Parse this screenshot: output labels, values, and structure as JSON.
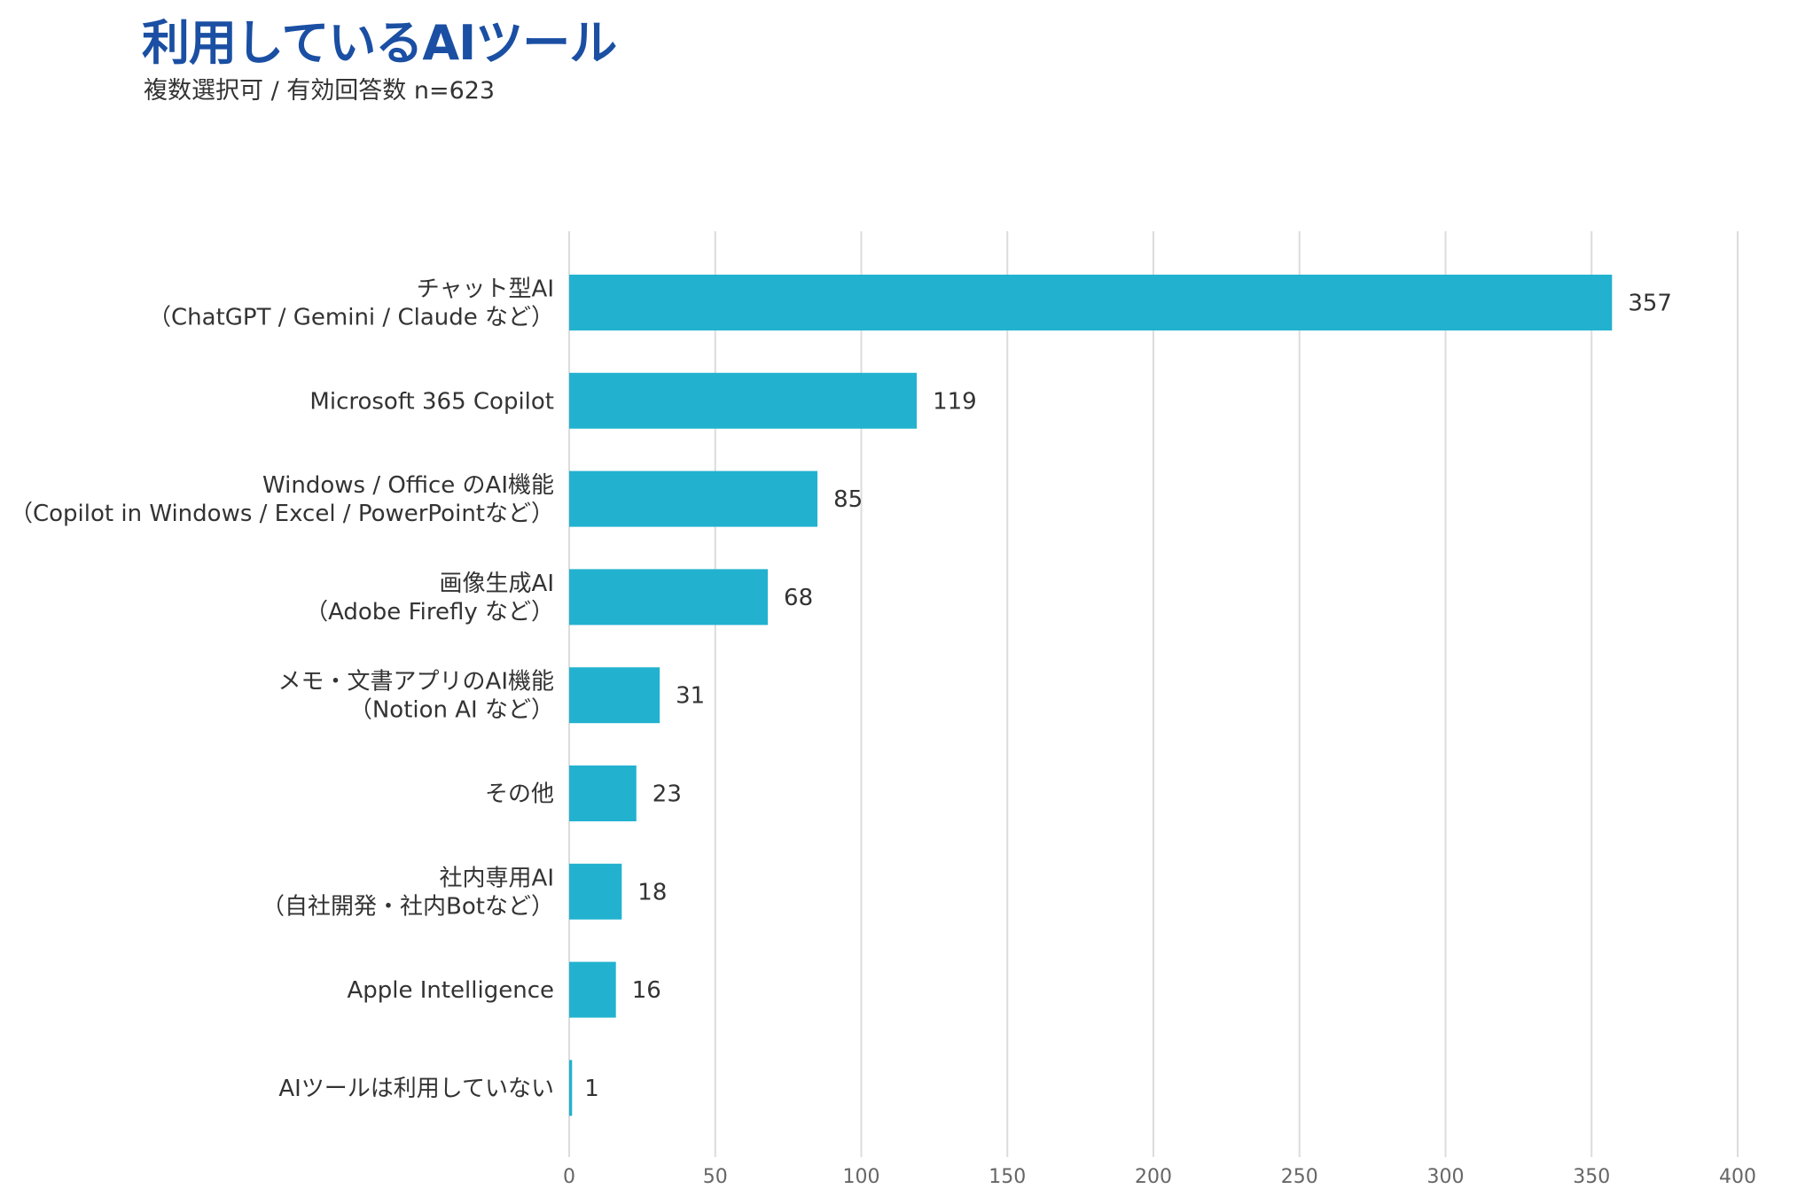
{
  "chart_data": {
    "type": "bar",
    "orientation": "horizontal",
    "title": "利用しているAIツール",
    "subtitle": "複数選択可 / 有効回答数 n=623",
    "categories": [
      [
        "チャット型AI",
        "（ChatGPT / Gemini / Claude など）"
      ],
      [
        "Microsoft 365 Copilot"
      ],
      [
        "Windows / Office のAI機能",
        "（Copilot in Windows / Excel / PowerPointなど）"
      ],
      [
        "画像生成AI",
        "（Adobe Firefly など）"
      ],
      [
        "メモ・文書アプリのAI機能",
        "（Notion AI など）"
      ],
      [
        "その他"
      ],
      [
        "社内専用AI",
        "（自社開発・社内Botなど）"
      ],
      [
        "Apple Intelligence"
      ],
      [
        "AIツールは利用していない"
      ]
    ],
    "values": [
      357,
      119,
      85,
      68,
      31,
      23,
      18,
      16,
      1
    ],
    "xlim": [
      0,
      400
    ],
    "xticks": [
      0,
      50,
      100,
      150,
      200,
      250,
      300,
      350,
      400
    ],
    "grid": "vertical",
    "bar_color": "#22b2cf",
    "title_color": "#1a4fa3"
  }
}
